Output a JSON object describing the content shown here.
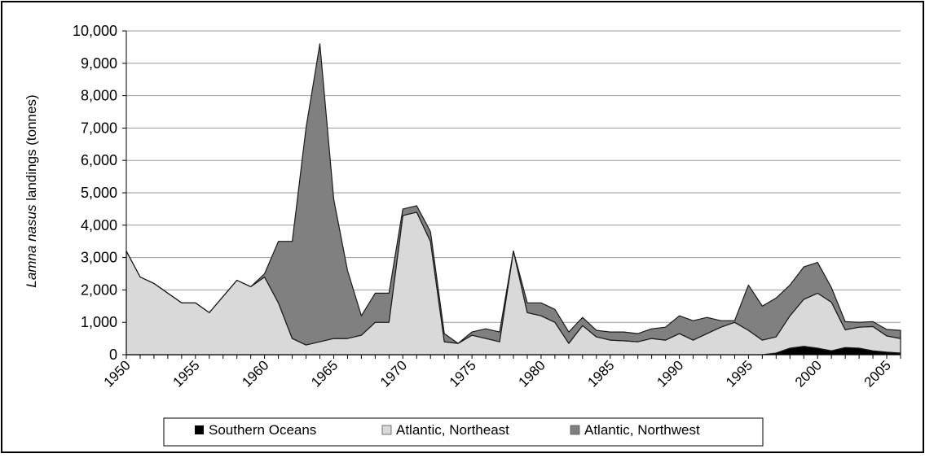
{
  "chart_data": {
    "type": "area",
    "stacked": true,
    "ylabel_prefix": "Lamna nasus",
    "ylabel_suffix": " landings (tonnes)",
    "ylim": [
      0,
      10000
    ],
    "yticks": [
      0,
      1000,
      2000,
      3000,
      4000,
      5000,
      6000,
      7000,
      8000,
      9000,
      10000
    ],
    "ytick_labels": [
      "0",
      "1,000",
      "2,000",
      "3,000",
      "4,000",
      "5,000",
      "6,000",
      "7,000",
      "8,000",
      "9,000",
      "10,000"
    ],
    "xlim": [
      1950,
      2006
    ],
    "xticks": [
      1950,
      1955,
      1960,
      1965,
      1970,
      1975,
      1980,
      1985,
      1990,
      1995,
      2000,
      2005
    ],
    "xtick_labels": [
      "1950",
      "1955",
      "1960",
      "1965",
      "1970",
      "1975",
      "1980",
      "1985",
      "1990",
      "1995",
      "2000",
      "2005"
    ],
    "grid": "horizontal",
    "legend_position": "bottom",
    "x": [
      1950,
      1951,
      1952,
      1953,
      1954,
      1955,
      1956,
      1957,
      1958,
      1959,
      1960,
      1961,
      1962,
      1963,
      1964,
      1965,
      1966,
      1967,
      1968,
      1969,
      1970,
      1971,
      1972,
      1973,
      1974,
      1975,
      1976,
      1977,
      1978,
      1979,
      1980,
      1981,
      1982,
      1983,
      1984,
      1985,
      1986,
      1987,
      1988,
      1989,
      1990,
      1991,
      1992,
      1993,
      1994,
      1995,
      1996,
      1997,
      1998,
      1999,
      2000,
      2001,
      2002,
      2003,
      2004,
      2005,
      2006
    ],
    "series": [
      {
        "name": "Southern Oceans",
        "color": "#000000",
        "values": [
          0,
          0,
          0,
          0,
          0,
          0,
          0,
          0,
          0,
          0,
          0,
          0,
          0,
          0,
          0,
          0,
          0,
          0,
          0,
          0,
          0,
          0,
          0,
          0,
          0,
          0,
          0,
          0,
          0,
          0,
          0,
          0,
          0,
          0,
          0,
          0,
          0,
          0,
          0,
          0,
          0,
          0,
          0,
          0,
          0,
          0,
          0,
          50,
          200,
          260,
          200,
          120,
          220,
          200,
          120,
          80,
          50
        ]
      },
      {
        "name": "Atlantic, Northeast",
        "color": "#d9d9d9",
        "values": [
          3200,
          2400,
          2200,
          1900,
          1600,
          1600,
          1300,
          1800,
          2300,
          2100,
          2400,
          1600,
          500,
          300,
          400,
          500,
          500,
          600,
          1000,
          1000,
          4300,
          4400,
          3500,
          400,
          350,
          600,
          500,
          400,
          3200,
          1300,
          1200,
          1000,
          350,
          900,
          550,
          450,
          430,
          400,
          500,
          450,
          650,
          450,
          650,
          850,
          1000,
          750,
          450,
          500,
          1000,
          1450,
          1700,
          1500,
          550,
          650,
          750,
          500,
          450
        ]
      },
      {
        "name": "Atlantic, Northwest",
        "color": "#808080",
        "values": [
          0,
          0,
          0,
          0,
          0,
          0,
          0,
          0,
          0,
          0,
          100,
          1900,
          3000,
          6700,
          9200,
          4300,
          2100,
          600,
          900,
          900,
          200,
          200,
          300,
          250,
          0,
          100,
          300,
          300,
          0,
          300,
          400,
          400,
          350,
          250,
          200,
          250,
          270,
          250,
          300,
          400,
          550,
          600,
          500,
          200,
          50,
          1400,
          1050,
          1200,
          950,
          1000,
          950,
          450,
          250,
          150,
          150,
          200,
          250
        ]
      }
    ]
  }
}
